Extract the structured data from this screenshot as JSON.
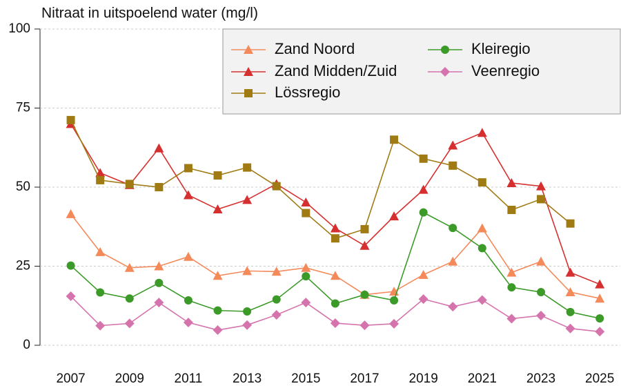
{
  "chart_data": {
    "type": "line",
    "title": "Nitraat in uitspoelend water (mg/l)",
    "x": [
      2007,
      2008,
      2009,
      2010,
      2011,
      2012,
      2013,
      2014,
      2015,
      2016,
      2017,
      2018,
      2019,
      2020,
      2021,
      2022,
      2023,
      2024,
      2025
    ],
    "xlim": [
      2006,
      2025.7
    ],
    "xticks": [
      2007,
      2009,
      2011,
      2013,
      2015,
      2017,
      2019,
      2021,
      2023,
      2025
    ],
    "ylim": [
      0,
      100
    ],
    "yticks": [
      0,
      25,
      50,
      75,
      100
    ],
    "grid": true,
    "legend": "top right",
    "series": [
      {
        "name": "Zand Noord",
        "color": "#f4895a",
        "marker": "triangle",
        "values": [
          41.5,
          29.5,
          24.5,
          25,
          28,
          22,
          23.5,
          23.3,
          24.5,
          22,
          16,
          17,
          22.3,
          26.5,
          37,
          23,
          26.5,
          16.8,
          14.8
        ]
      },
      {
        "name": "Zand Midden/Zuid",
        "color": "#d62f2f",
        "marker": "triangle",
        "values": [
          70,
          54.5,
          50.7,
          62.3,
          47.5,
          43,
          46,
          51,
          45.2,
          37,
          31.5,
          40.8,
          49.2,
          63.2,
          67.2,
          51.3,
          50.3,
          23,
          19.3
        ]
      },
      {
        "name": "Lössregio",
        "color": "#a07b14",
        "marker": "square",
        "values": [
          71.2,
          52.2,
          51,
          50,
          56,
          53.7,
          56.2,
          50.3,
          41.8,
          33.8,
          36.7,
          65,
          59,
          56.8,
          51.5,
          42.8,
          46.2,
          38.5,
          null
        ]
      },
      {
        "name": "Kleiregio",
        "color": "#3c9a29",
        "marker": "circle",
        "values": [
          25.2,
          16.7,
          14.8,
          19.7,
          14.2,
          11,
          10.7,
          14.5,
          21.8,
          13.2,
          16,
          14.2,
          42,
          37.1,
          30.7,
          18.3,
          16.8,
          10.5,
          8.5
        ]
      },
      {
        "name": "Veenregio",
        "color": "#d573ad",
        "marker": "diamond",
        "values": [
          15.5,
          6.2,
          6.9,
          13.5,
          7.2,
          4.8,
          6.4,
          9.6,
          13.5,
          7,
          6.3,
          6.8,
          14.6,
          12.2,
          14.3,
          8.4,
          9.4,
          5.3,
          4.3
        ]
      }
    ]
  }
}
